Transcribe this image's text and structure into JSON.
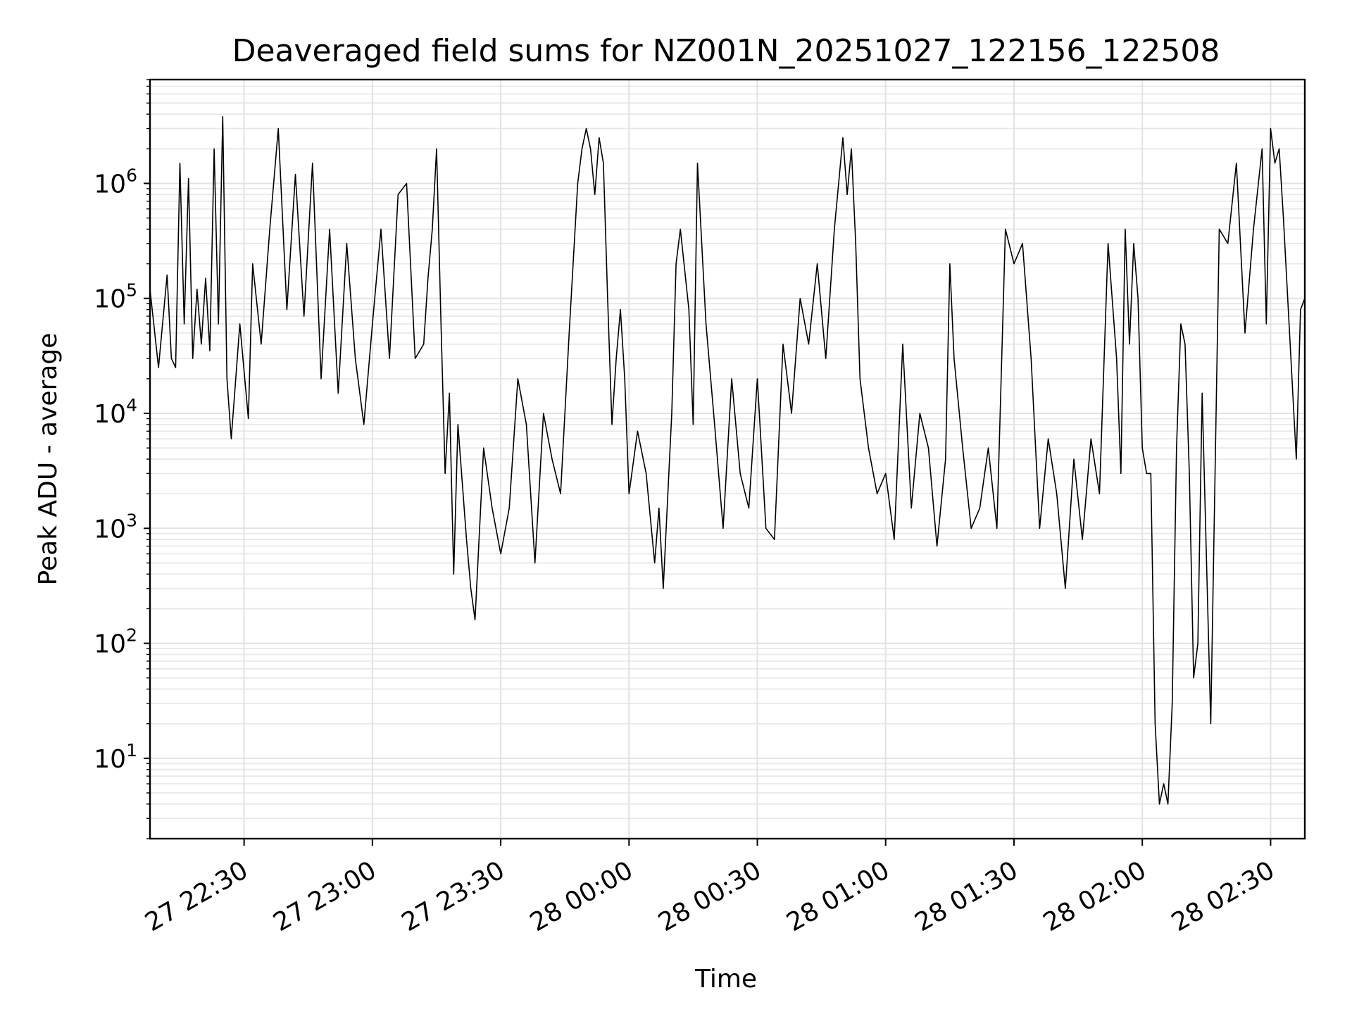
{
  "chart_data": {
    "type": "line",
    "title": "Deaveraged field sums for NZ001N_20251027_122156_122508",
    "xlabel": "Time",
    "ylabel": "Peak ADU - average",
    "yscale": "log",
    "ylim": [
      2,
      8000000
    ],
    "xlim": [
      "2025-10-27 22:08",
      "2025-10-28 02:38"
    ],
    "grid": true,
    "x_ticks": [
      {
        "value": "2025-10-27 22:30",
        "label": "27 22:30"
      },
      {
        "value": "2025-10-27 23:00",
        "label": "27 23:00"
      },
      {
        "value": "2025-10-27 23:30",
        "label": "27 23:30"
      },
      {
        "value": "2025-10-28 00:00",
        "label": "28 00:00"
      },
      {
        "value": "2025-10-28 00:30",
        "label": "28 00:30"
      },
      {
        "value": "2025-10-28 01:00",
        "label": "28 01:00"
      },
      {
        "value": "2025-10-28 01:30",
        "label": "28 01:30"
      },
      {
        "value": "2025-10-28 02:00",
        "label": "28 02:00"
      },
      {
        "value": "2025-10-28 02:30",
        "label": "28 02:30"
      }
    ],
    "y_ticks": [
      {
        "value": 10,
        "base": "10",
        "exp": "1"
      },
      {
        "value": 100,
        "base": "10",
        "exp": "2"
      },
      {
        "value": 1000,
        "base": "10",
        "exp": "3"
      },
      {
        "value": 10000,
        "base": "10",
        "exp": "4"
      },
      {
        "value": 100000,
        "base": "10",
        "exp": "5"
      },
      {
        "value": 1000000,
        "base": "10",
        "exp": "6"
      }
    ],
    "series": [
      {
        "color": "#000000",
        "x": [
          "2025-10-27 22:08",
          "2025-10-27 22:10",
          "2025-10-27 22:12",
          "2025-10-27 22:13",
          "2025-10-27 22:14",
          "2025-10-27 22:15",
          "2025-10-27 22:16",
          "2025-10-27 22:17",
          "2025-10-27 22:18",
          "2025-10-27 22:19",
          "2025-10-27 22:20",
          "2025-10-27 22:21",
          "2025-10-27 22:22",
          "2025-10-27 22:23",
          "2025-10-27 22:24",
          "2025-10-27 22:25",
          "2025-10-27 22:26",
          "2025-10-27 22:27",
          "2025-10-27 22:29",
          "2025-10-27 22:31",
          "2025-10-27 22:32",
          "2025-10-27 22:34",
          "2025-10-27 22:36",
          "2025-10-27 22:38",
          "2025-10-27 22:40",
          "2025-10-27 22:42",
          "2025-10-27 22:44",
          "2025-10-27 22:46",
          "2025-10-27 22:48",
          "2025-10-27 22:50",
          "2025-10-27 22:52",
          "2025-10-27 22:54",
          "2025-10-27 22:56",
          "2025-10-27 22:58",
          "2025-10-27 23:00",
          "2025-10-27 23:02",
          "2025-10-27 23:04",
          "2025-10-27 23:06",
          "2025-10-27 23:08",
          "2025-10-27 23:10",
          "2025-10-27 23:12",
          "2025-10-27 23:13",
          "2025-10-27 23:14",
          "2025-10-27 23:15",
          "2025-10-27 23:16",
          "2025-10-27 23:17",
          "2025-10-27 23:18",
          "2025-10-27 23:19",
          "2025-10-27 23:20",
          "2025-10-27 23:22",
          "2025-10-27 23:23",
          "2025-10-27 23:24",
          "2025-10-27 23:26",
          "2025-10-27 23:28",
          "2025-10-27 23:30",
          "2025-10-27 23:32",
          "2025-10-27 23:34",
          "2025-10-27 23:36",
          "2025-10-27 23:38",
          "2025-10-27 23:40",
          "2025-10-27 23:42",
          "2025-10-27 23:44",
          "2025-10-27 23:46",
          "2025-10-27 23:48",
          "2025-10-27 23:49",
          "2025-10-27 23:50",
          "2025-10-27 23:51",
          "2025-10-27 23:52",
          "2025-10-27 23:53",
          "2025-10-27 23:54",
          "2025-10-27 23:55",
          "2025-10-27 23:56",
          "2025-10-27 23:57",
          "2025-10-27 23:58",
          "2025-10-27 23:59",
          "2025-10-28 00:00",
          "2025-10-28 00:02",
          "2025-10-28 00:04",
          "2025-10-28 00:06",
          "2025-10-28 00:07",
          "2025-10-28 00:08",
          "2025-10-28 00:10",
          "2025-10-28 00:11",
          "2025-10-28 00:12",
          "2025-10-28 00:14",
          "2025-10-28 00:15",
          "2025-10-28 00:16",
          "2025-10-28 00:18",
          "2025-10-28 00:20",
          "2025-10-28 00:22",
          "2025-10-28 00:24",
          "2025-10-28 00:26",
          "2025-10-28 00:28",
          "2025-10-28 00:30",
          "2025-10-28 00:32",
          "2025-10-28 00:34",
          "2025-10-28 00:36",
          "2025-10-28 00:38",
          "2025-10-28 00:40",
          "2025-10-28 00:42",
          "2025-10-28 00:44",
          "2025-10-28 00:46",
          "2025-10-28 00:48",
          "2025-10-28 00:50",
          "2025-10-28 00:51",
          "2025-10-28 00:52",
          "2025-10-28 00:53",
          "2025-10-28 00:54",
          "2025-10-28 00:56",
          "2025-10-28 00:58",
          "2025-10-28 01:00",
          "2025-10-28 01:02",
          "2025-10-28 01:04",
          "2025-10-28 01:06",
          "2025-10-28 01:08",
          "2025-10-28 01:10",
          "2025-10-28 01:12",
          "2025-10-28 01:14",
          "2025-10-28 01:15",
          "2025-10-28 01:16",
          "2025-10-28 01:18",
          "2025-10-28 01:20",
          "2025-10-28 01:22",
          "2025-10-28 01:24",
          "2025-10-28 01:26",
          "2025-10-28 01:28",
          "2025-10-28 01:30",
          "2025-10-28 01:32",
          "2025-10-28 01:34",
          "2025-10-28 01:36",
          "2025-10-28 01:38",
          "2025-10-28 01:40",
          "2025-10-28 01:42",
          "2025-10-28 01:44",
          "2025-10-28 01:46",
          "2025-10-28 01:48",
          "2025-10-28 01:50",
          "2025-10-28 01:52",
          "2025-10-28 01:54",
          "2025-10-28 01:55",
          "2025-10-28 01:56",
          "2025-10-28 01:57",
          "2025-10-28 01:58",
          "2025-10-28 01:59",
          "2025-10-28 02:00",
          "2025-10-28 02:01",
          "2025-10-28 02:02",
          "2025-10-28 02:03",
          "2025-10-28 02:04",
          "2025-10-28 02:05",
          "2025-10-28 02:06",
          "2025-10-28 02:07",
          "2025-10-28 02:08",
          "2025-10-28 02:09",
          "2025-10-28 02:10",
          "2025-10-28 02:11",
          "2025-10-28 02:12",
          "2025-10-28 02:13",
          "2025-10-28 02:14",
          "2025-10-28 02:16",
          "2025-10-28 02:18",
          "2025-10-28 02:20",
          "2025-10-28 02:22",
          "2025-10-28 02:24",
          "2025-10-28 02:26",
          "2025-10-28 02:28",
          "2025-10-28 02:29",
          "2025-10-28 02:30",
          "2025-10-28 02:31",
          "2025-10-28 02:32",
          "2025-10-28 02:33",
          "2025-10-28 02:34",
          "2025-10-28 02:35",
          "2025-10-28 02:36",
          "2025-10-28 02:37",
          "2025-10-28 02:38"
        ],
        "y": [
          120000,
          25000,
          160000,
          30000,
          25000,
          1500000,
          60000,
          1100000,
          30000,
          120000,
          40000,
          150000,
          35000,
          2000000,
          60000,
          3800000,
          20000,
          6000,
          60000,
          9000,
          200000,
          40000,
          400000,
          3000000,
          80000,
          1200000,
          70000,
          1500000,
          20000,
          400000,
          15000,
          300000,
          30000,
          8000,
          60000,
          400000,
          30000,
          800000,
          1000000,
          30000,
          40000,
          150000,
          400000,
          2000000,
          70000,
          3000,
          15000,
          400,
          8000,
          800,
          300,
          160,
          5000,
          1500,
          600,
          1500,
          20000,
          8000,
          500,
          10000,
          4000,
          2000,
          50000,
          1000000,
          2000000,
          3000000,
          2000000,
          800000,
          2500000,
          1500000,
          100000,
          8000,
          30000,
          80000,
          20000,
          2000,
          7000,
          3000,
          500,
          1500,
          300,
          10000,
          200000,
          400000,
          80000,
          8000,
          1500000,
          60000,
          8000,
          1000,
          20000,
          3000,
          1500,
          20000,
          1000,
          800,
          40000,
          10000,
          100000,
          40000,
          200000,
          30000,
          400000,
          2500000,
          800000,
          2000000,
          300000,
          20000,
          5000,
          2000,
          3000,
          800,
          40000,
          1500,
          10000,
          5000,
          700,
          4000,
          200000,
          30000,
          5000,
          1000,
          1500,
          5000,
          1000,
          400000,
          200000,
          300000,
          30000,
          1000,
          6000,
          2000,
          300,
          4000,
          800,
          6000,
          2000,
          300000,
          30000,
          3000,
          400000,
          40000,
          300000,
          100000,
          5000,
          3000,
          3000,
          20,
          4,
          6,
          4,
          30,
          5000,
          60000,
          40000,
          3000,
          50,
          100,
          15000,
          20,
          400000,
          300000,
          1500000,
          50000,
          400000,
          2000000,
          60000,
          3000000,
          1500000,
          2000000,
          500000,
          100000,
          20000,
          4000,
          80000,
          100000
        ]
      }
    ]
  }
}
